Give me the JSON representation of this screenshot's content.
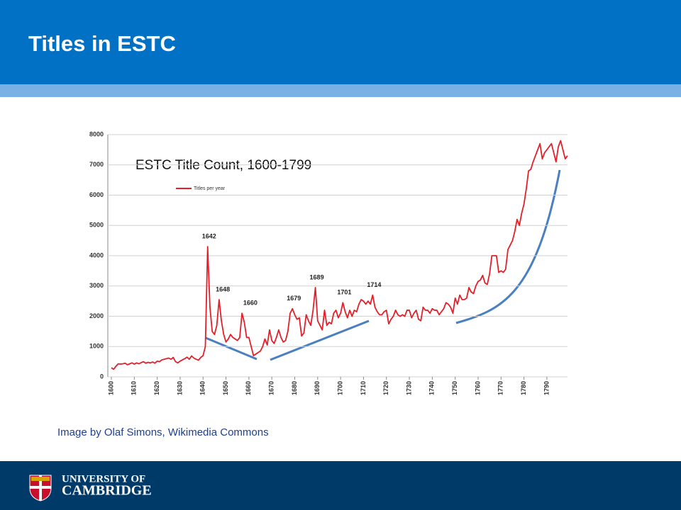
{
  "slide": {
    "title": "Titles in ESTC",
    "caption": "Image by Olaf Simons, Wikimedia Commons",
    "footer": [
      "UNIVERSITY OF",
      "CAMBRIDGE"
    ]
  },
  "chart_data": {
    "type": "line",
    "title": "ESTC Title Count, 1600-1799",
    "x": [
      1600,
      1601,
      1602,
      1603,
      1604,
      1605,
      1606,
      1607,
      1608,
      1609,
      1610,
      1611,
      1612,
      1613,
      1614,
      1615,
      1616,
      1617,
      1618,
      1619,
      1620,
      1621,
      1622,
      1623,
      1624,
      1625,
      1626,
      1627,
      1628,
      1629,
      1630,
      1631,
      1632,
      1633,
      1634,
      1635,
      1636,
      1637,
      1638,
      1639,
      1640,
      1641,
      1642,
      1643,
      1644,
      1645,
      1646,
      1647,
      1648,
      1649,
      1650,
      1651,
      1652,
      1653,
      1654,
      1655,
      1656,
      1657,
      1658,
      1659,
      1660,
      1661,
      1662,
      1663,
      1664,
      1665,
      1666,
      1667,
      1668,
      1669,
      1670,
      1671,
      1672,
      1673,
      1674,
      1675,
      1676,
      1677,
      1678,
      1679,
      1680,
      1681,
      1682,
      1683,
      1684,
      1685,
      1686,
      1687,
      1688,
      1689,
      1690,
      1691,
      1692,
      1693,
      1694,
      1695,
      1696,
      1697,
      1698,
      1699,
      1700,
      1701,
      1702,
      1703,
      1704,
      1705,
      1706,
      1707,
      1708,
      1709,
      1710,
      1711,
      1712,
      1713,
      1714,
      1715,
      1716,
      1717,
      1718,
      1719,
      1720,
      1721,
      1722,
      1723,
      1724,
      1725,
      1726,
      1727,
      1728,
      1729,
      1730,
      1731,
      1732,
      1733,
      1734,
      1735,
      1736,
      1737,
      1738,
      1739,
      1740,
      1741,
      1742,
      1743,
      1744,
      1745,
      1746,
      1747,
      1748,
      1749,
      1750,
      1751,
      1752,
      1753,
      1754,
      1755,
      1756,
      1757,
      1758,
      1759,
      1760,
      1761,
      1762,
      1763,
      1764,
      1765,
      1766,
      1767,
      1768,
      1769,
      1770,
      1771,
      1772,
      1773,
      1774,
      1775,
      1776,
      1777,
      1778,
      1779,
      1780,
      1781,
      1782,
      1783,
      1784,
      1785,
      1786,
      1787,
      1788,
      1789,
      1790,
      1791,
      1792,
      1793,
      1794,
      1795,
      1796,
      1797,
      1798,
      1799
    ],
    "series": [
      {
        "name": "Titles per year",
        "color": "#e3202a",
        "values": [
          300,
          250,
          350,
          430,
          420,
          430,
          450,
          400,
          430,
          460,
          420,
          460,
          430,
          470,
          500,
          450,
          480,
          460,
          490,
          450,
          520,
          500,
          560,
          580,
          600,
          620,
          580,
          640,
          500,
          460,
          520,
          560,
          600,
          650,
          580,
          690,
          620,
          580,
          550,
          640,
          700,
          1000,
          4300,
          2300,
          1500,
          1400,
          1700,
          2550,
          1850,
          1400,
          1150,
          1250,
          1400,
          1300,
          1250,
          1200,
          1300,
          2100,
          1800,
          1300,
          1300,
          1000,
          700,
          750,
          800,
          850,
          1000,
          1250,
          1050,
          1550,
          1200,
          1100,
          1300,
          1550,
          1300,
          1150,
          1200,
          1500,
          2100,
          2250,
          2050,
          1900,
          1950,
          1350,
          1450,
          2050,
          1850,
          1700,
          2200,
          2950,
          1850,
          1700,
          1550,
          2200,
          1700,
          1800,
          1750,
          2100,
          2200,
          1950,
          2100,
          2450,
          2150,
          1950,
          2200,
          2000,
          2200,
          2150,
          2400,
          2550,
          2500,
          2400,
          2500,
          2400,
          2700,
          2300,
          2150,
          2050,
          2050,
          2150,
          2200,
          1750,
          1900,
          2000,
          2200,
          2050,
          2000,
          2050,
          2000,
          2200,
          2200,
          1950,
          2100,
          2200,
          1900,
          1850,
          2300,
          2200,
          2200,
          2100,
          2250,
          2200,
          2200,
          2050,
          2150,
          2250,
          2450,
          2400,
          2300,
          2100,
          2600,
          2400,
          2700,
          2550,
          2550,
          2600,
          2950,
          2800,
          2750,
          3000,
          3150,
          3200,
          3350,
          3100,
          3050,
          3400,
          4000,
          4000,
          4000,
          3450,
          3500,
          3450,
          3550,
          4200,
          4350,
          4500,
          4800,
          5200,
          5000,
          5400,
          5700,
          6200,
          6800,
          6850,
          7100,
          7300,
          7500,
          7700,
          7200,
          7400,
          7500,
          7600,
          7700,
          7400,
          7100,
          7600,
          7800,
          7500,
          7200,
          7300
        ]
      }
    ],
    "annotations": [
      "1642",
      "1648",
      "1660",
      "1679",
      "1689",
      "1701",
      "1714"
    ],
    "xlim": [
      1600,
      1799
    ],
    "xticks": [
      1600,
      1610,
      1620,
      1630,
      1640,
      1650,
      1660,
      1670,
      1680,
      1690,
      1700,
      1710,
      1720,
      1730,
      1740,
      1750,
      1760,
      1770,
      1780,
      1790
    ],
    "ylim": [
      0,
      8000
    ],
    "yticks": [
      0,
      1000,
      2000,
      3000,
      4000,
      5000,
      6000,
      7000,
      8000
    ],
    "grid": true,
    "legend": "upper left"
  }
}
